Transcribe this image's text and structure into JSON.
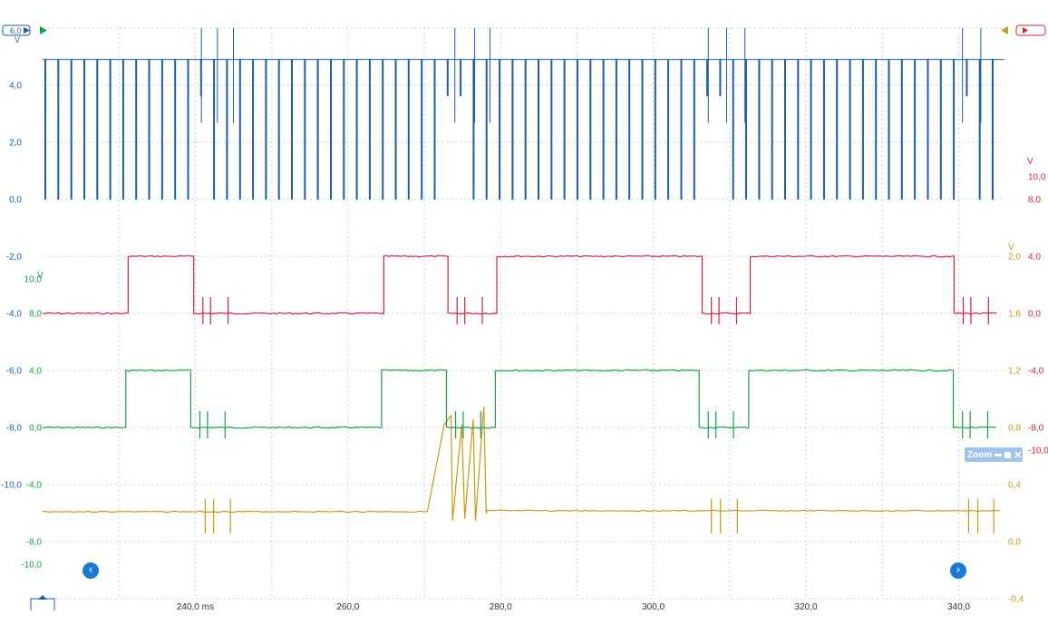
{
  "colors": {
    "blue": "#1c5fa8",
    "red": "#d8203c",
    "green": "#18a048",
    "gold": "#c99a14",
    "grid": "#bfd3e3"
  },
  "channels": {
    "a_label": "6,0",
    "a_unit": "V",
    "d_unit": "V",
    "b_unit": "V",
    "c_unit": "V"
  },
  "zoom": {
    "label": "Zoom"
  },
  "nav": {
    "prev_icon": "chevron-left-icon",
    "next_icon": "chevron-right-icon"
  },
  "chart_data": {
    "type": "line",
    "xlabel_unit": "ms",
    "xlim": [
      220.0,
      346.0
    ],
    "x_ticks": [
      {
        "value": 240,
        "label": "240,0 ms"
      },
      {
        "value": 260,
        "label": "260,0"
      },
      {
        "value": 280,
        "label": "280,0"
      },
      {
        "value": 300,
        "label": "300,0"
      },
      {
        "value": 320,
        "label": "320,0"
      },
      {
        "value": 340,
        "label": "340,0"
      }
    ],
    "axes": {
      "blue_left": {
        "ticks": [
          "6,0",
          "4,0",
          "2,0",
          "0,0",
          "-2,0",
          "-4,0",
          "-6,0",
          "-8,0",
          "-10,0"
        ],
        "unit": "V"
      },
      "green_left": {
        "ticks": [
          "10,0",
          "8,0",
          "4,0",
          "0,0",
          "-4,0",
          "-8,0",
          "-10,0"
        ],
        "unit": "V"
      },
      "gold_right": {
        "ticks": [
          "2,0",
          "1,6",
          "1,2",
          "0,8",
          "0,4",
          "0,0",
          "-0,4"
        ],
        "unit": "V"
      },
      "red_right": {
        "ticks": [
          "10,0",
          "8,0",
          "4,0",
          "0,0",
          "-4,0",
          "-8,0",
          "-10,0"
        ],
        "unit": "V"
      }
    },
    "series": [
      {
        "color": "blue",
        "type": "digital-pulse-train",
        "high_v": 4.9,
        "low_v": 0.0,
        "pulse_period_ms": 1.7
      },
      {
        "color": "red",
        "type": "square",
        "high_v": 4.0,
        "low_v": 0.0,
        "high_intervals_ms": [
          [
            231.2,
            239.8
          ],
          [
            264.7,
            273.1
          ],
          [
            279.5,
            306.4
          ],
          [
            312.7,
            339.4
          ]
        ]
      },
      {
        "color": "green",
        "type": "square",
        "high_v": 4.0,
        "low_v": 0.0,
        "high_intervals_ms": [
          [
            230.9,
            239.4
          ],
          [
            264.4,
            272.9
          ],
          [
            279.3,
            306.0
          ],
          [
            312.5,
            339.3
          ]
        ]
      },
      {
        "color": "gold",
        "type": "analog",
        "baseline_v": 0.21,
        "ramp_ms": [
          270.5,
          273.7
        ],
        "ramp_peak_v": 0.82
      }
    ]
  }
}
